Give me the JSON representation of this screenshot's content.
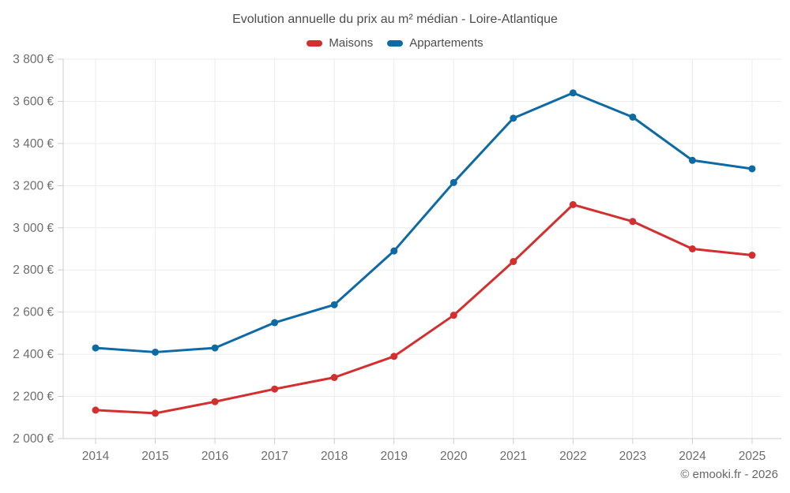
{
  "title": "Evolution annuelle du prix au m² médian - Loire-Atlantique",
  "legend": [
    {
      "label": "Maisons",
      "color": "#d32f2f"
    },
    {
      "label": "Appartements",
      "color": "#0e6aa5"
    }
  ],
  "footer": "© emooki.fr - 2026",
  "colors": {
    "background": "#ffffff",
    "grid": "#ebebeb",
    "axis": "#cccccc",
    "tick_label": "#6e6e6e",
    "title": "#4d4d4d",
    "footer": "#666666",
    "maisons": "#d32f2f",
    "appartements": "#0e6aa5"
  },
  "chart_data": {
    "type": "line",
    "title": "Evolution annuelle du prix au m² médian - Loire-Atlantique",
    "xlabel": "",
    "ylabel": "",
    "legend_position": "top",
    "grid": true,
    "x": [
      2014,
      2015,
      2016,
      2017,
      2018,
      2019,
      2020,
      2021,
      2022,
      2023,
      2024,
      2025
    ],
    "x_tick_labels": [
      "2014",
      "2015",
      "2016",
      "2017",
      "2018",
      "2019",
      "2020",
      "2021",
      "2022",
      "2023",
      "2024",
      "2025"
    ],
    "ylim": [
      2000,
      3800
    ],
    "y_tick_step": 200,
    "y_ticks": [
      {
        "value": 2000,
        "label": "2 000 €"
      },
      {
        "value": 2200,
        "label": "2 200 €"
      },
      {
        "value": 2400,
        "label": "2 400 €"
      },
      {
        "value": 2600,
        "label": "2 600 €"
      },
      {
        "value": 2800,
        "label": "2 800 €"
      },
      {
        "value": 3000,
        "label": "3 000 €"
      },
      {
        "value": 3200,
        "label": "3 200 €"
      },
      {
        "value": 3400,
        "label": "3 400 €"
      },
      {
        "value": 3600,
        "label": "3 600 €"
      },
      {
        "value": 3800,
        "label": "3 800 €"
      }
    ],
    "series": [
      {
        "name": "Maisons",
        "color": "#d32f2f",
        "values": [
          2135,
          2120,
          2175,
          2235,
          2290,
          2390,
          2585,
          2840,
          3110,
          3030,
          2900,
          2870
        ]
      },
      {
        "name": "Appartements",
        "color": "#0e6aa5",
        "values": [
          2430,
          2410,
          2430,
          2550,
          2635,
          2890,
          3215,
          3520,
          3640,
          3525,
          3320,
          3280
        ]
      }
    ]
  }
}
